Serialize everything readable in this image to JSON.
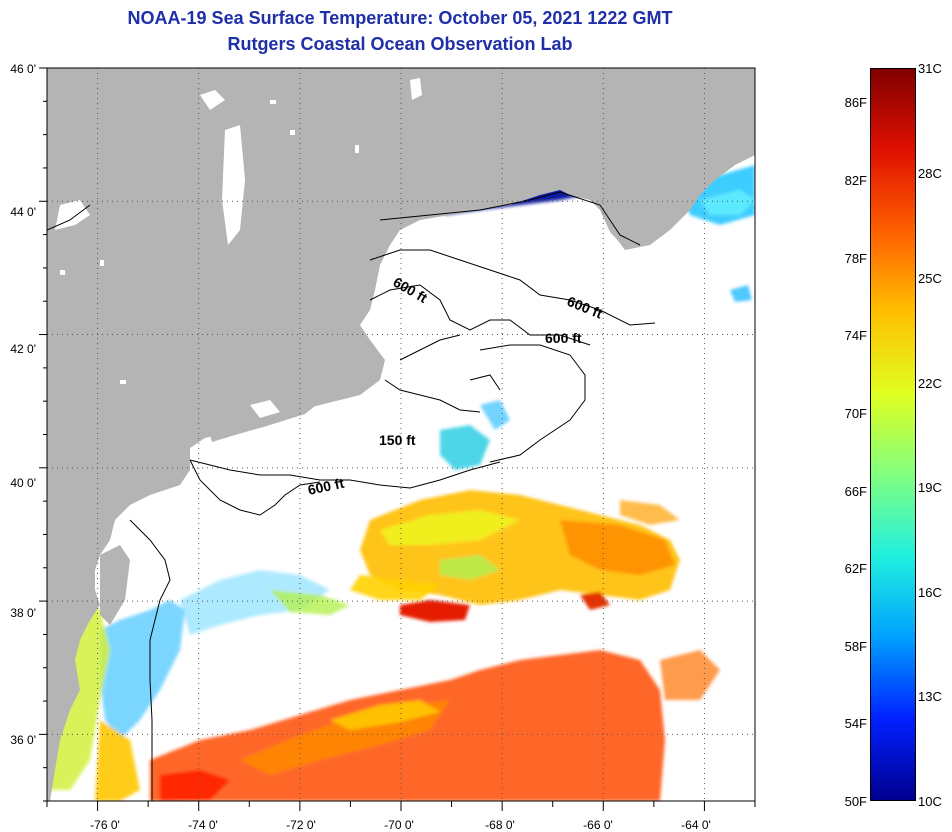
{
  "header": {
    "title": "NOAA-19 Sea Surface Temperature:  October 05, 2021 1222 GMT",
    "subtitle": "Rutgers Coastal Ocean Observation Lab"
  },
  "map": {
    "lat_labels": [
      "46 0'",
      "44 0'",
      "42 0'",
      "40 0'",
      "38 0'",
      "36 0'"
    ],
    "lon_labels": [
      "-76 0'",
      "-74 0'",
      "-72 0'",
      "-70 0'",
      "-68 0'",
      "-66 0'",
      "-64 0'"
    ],
    "lat_range": [
      35,
      46
    ],
    "lon_range": [
      -77,
      -63
    ],
    "contour_labels": [
      "600 ft",
      "600 ft",
      "600 ft",
      "150 ft",
      "600 ft"
    ],
    "land_color": "#b4b4b4",
    "ocean_no_data_color": "#ffffff"
  },
  "colorbar": {
    "fahrenheit_labels": [
      "86F",
      "82F",
      "78F",
      "74F",
      "70F",
      "66F",
      "62F",
      "58F",
      "54F",
      "50F"
    ],
    "celsius_labels": [
      "31C",
      "28C",
      "25C",
      "22C",
      "19C",
      "16C",
      "13C",
      "10C"
    ],
    "range_c": [
      10,
      31
    ],
    "gradient_colors": [
      "#00008f",
      "#0020ff",
      "#00a0ff",
      "#20f0e0",
      "#80ff80",
      "#e0ff20",
      "#ffc000",
      "#ff6000",
      "#e01000",
      "#800000"
    ]
  }
}
